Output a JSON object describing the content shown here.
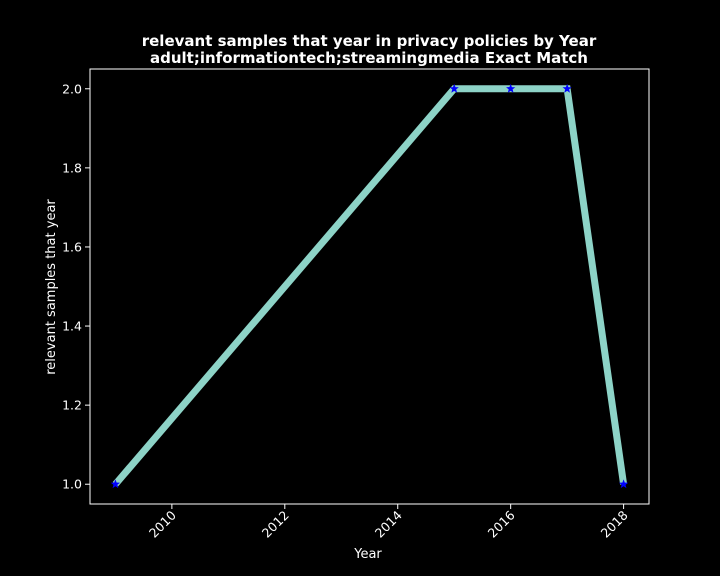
{
  "chart_data": {
    "type": "line",
    "title": "relevant samples that year in privacy policies by Year",
    "subtitle": "adult;informationtech;streamingmedia Exact Match",
    "xlabel": "Year",
    "ylabel": "relevant samples that year",
    "x": [
      2009,
      2015,
      2016,
      2017,
      2018
    ],
    "series": [
      {
        "values": [
          1,
          2,
          2,
          2,
          1
        ]
      }
    ],
    "xlim": [
      2008.55,
      2018.45
    ],
    "ylim": [
      0.95,
      2.05
    ],
    "xticks": [
      2010,
      2012,
      2014,
      2016,
      2018
    ],
    "xtick_labels": [
      "2010",
      "2012",
      "2014",
      "2016",
      "2018"
    ],
    "yticks": [
      1.0,
      1.2,
      1.4,
      1.6,
      1.8,
      2.0
    ],
    "ytick_labels": [
      "1.0",
      "1.2",
      "1.4",
      "1.6",
      "1.8",
      "2.0"
    ],
    "grid": false,
    "marker": "star",
    "colors": {
      "background": "#000000",
      "line": "#8dd3c7",
      "marker": "#0000ff",
      "text": "#ffffff"
    }
  }
}
